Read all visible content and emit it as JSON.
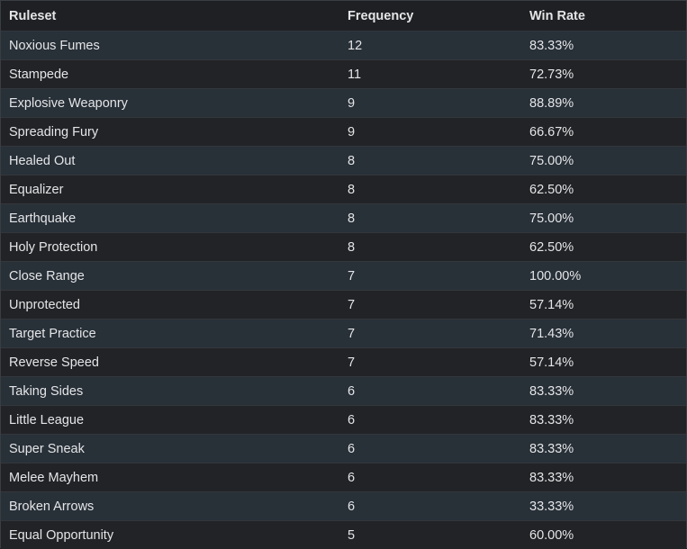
{
  "table": {
    "header": [
      "Ruleset",
      "Frequency",
      "Win Rate"
    ],
    "rows": [
      [
        "Noxious Fumes",
        12,
        "83.33%"
      ],
      [
        "Stampede",
        11,
        "72.73%"
      ],
      [
        "Explosive Weaponry",
        9,
        "88.89%"
      ],
      [
        "Spreading Fury",
        9,
        "66.67%"
      ],
      [
        "Healed Out",
        8,
        "75.00%"
      ],
      [
        "Equalizer",
        8,
        "62.50%"
      ],
      [
        "Earthquake",
        8,
        "75.00%"
      ],
      [
        "Holy Protection",
        8,
        "62.50%"
      ],
      [
        "Close Range",
        7,
        "100.00%"
      ],
      [
        "Unprotected",
        7,
        "57.14%"
      ],
      [
        "Target Practice",
        7,
        "71.43%"
      ],
      [
        "Reverse Speed",
        7,
        "57.14%"
      ],
      [
        "Taking Sides",
        6,
        "83.33%"
      ],
      [
        "Little League",
        6,
        "83.33%"
      ],
      [
        "Super Sneak",
        6,
        "83.33%"
      ],
      [
        "Melee Mayhem",
        6,
        "83.33%"
      ],
      [
        "Broken Arrows",
        6,
        "33.33%"
      ],
      [
        "Equal Opportunity",
        5,
        "60.00%"
      ]
    ]
  }
}
